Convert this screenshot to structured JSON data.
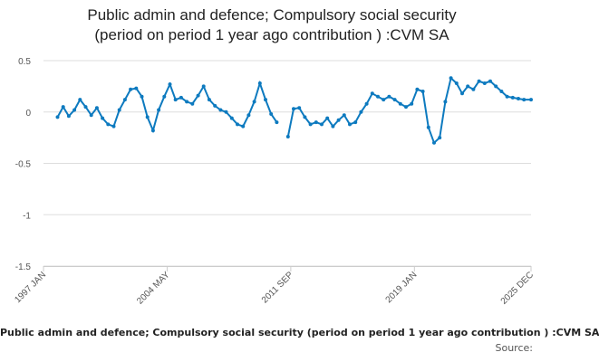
{
  "chart_data": {
    "type": "line",
    "title_line1": "Public admin and defence; Compulsory social security",
    "title_line2": "(period on period 1 year ago contribution ) :CVM SA",
    "series_label": "Public admin and defence; Compulsory social security (period on period 1 year ago contribution ) :CVM SA",
    "source_label": "Source:",
    "ylim": [
      -1.5,
      0.5
    ],
    "yticks": [
      "0.5",
      "0",
      "-0.5",
      "-1",
      "-1.5"
    ],
    "yticks_values": [
      0.5,
      0,
      -0.5,
      -1,
      -1.5
    ],
    "xticks": [
      "1997 JAN",
      "2004 MAY",
      "2011 SEP",
      "2019 JAN",
      "2025 DEC"
    ],
    "xticks_values": [
      1997.0,
      2004.333,
      2011.667,
      2019.0,
      2025.917
    ],
    "grid": "horizontal",
    "legend": "none",
    "line_color": "#0d7abf",
    "x": [
      1997.833,
      1998.167,
      1998.5,
      1998.833,
      1999.167,
      1999.5,
      1999.833,
      2000.167,
      2000.5,
      2000.833,
      2001.167,
      2001.5,
      2001.833,
      2002.167,
      2002.5,
      2002.833,
      2003.167,
      2003.5,
      2003.833,
      2004.167,
      2004.5,
      2004.833,
      2005.167,
      2005.5,
      2005.833,
      2006.167,
      2006.5,
      2006.833,
      2007.167,
      2007.5,
      2007.833,
      2008.167,
      2008.5,
      2008.833,
      2009.167,
      2009.5,
      2009.833,
      2010.167,
      2010.5,
      2010.833,
      2011.5,
      2011.833,
      2012.167,
      2012.5,
      2012.833,
      2013.167,
      2013.5,
      2013.833,
      2014.167,
      2014.5,
      2014.833,
      2015.167,
      2015.5,
      2015.833,
      2016.167,
      2016.5,
      2016.833,
      2017.167,
      2017.5,
      2017.833,
      2018.167,
      2018.5,
      2018.833,
      2019.167,
      2019.5,
      2019.833,
      2020.167,
      2020.5,
      2020.833,
      2021.167,
      2021.5,
      2021.833,
      2022.167,
      2022.5,
      2022.833,
      2023.167,
      2023.5,
      2023.833,
      2024.167,
      2024.5,
      2024.833,
      2025.167,
      2025.5,
      2025.917
    ],
    "values": [
      -0.05,
      0.05,
      -0.04,
      0.02,
      0.12,
      0.05,
      -0.03,
      0.04,
      -0.06,
      -0.12,
      -0.14,
      0.02,
      0.12,
      0.22,
      0.23,
      0.15,
      -0.05,
      -0.18,
      0.02,
      0.15,
      0.27,
      0.12,
      0.14,
      0.1,
      0.08,
      0.16,
      0.25,
      0.12,
      0.06,
      0.02,
      0.0,
      -0.06,
      -0.12,
      -0.14,
      -0.03,
      0.1,
      0.28,
      0.12,
      -0.02,
      -0.1,
      -0.24,
      0.03,
      0.04,
      -0.05,
      -0.12,
      -0.1,
      -0.12,
      -0.06,
      -0.14,
      -0.08,
      -0.03,
      -0.12,
      -0.1,
      0.0,
      0.08,
      0.18,
      0.15,
      0.12,
      0.15,
      0.12,
      0.08,
      0.05,
      0.08,
      0.22,
      0.2,
      -0.15,
      -0.3,
      -0.25,
      0.1,
      0.33,
      0.28,
      0.18,
      0.25,
      0.22,
      0.3,
      0.28,
      0.3,
      0.25,
      0.2,
      0.15,
      0.14,
      0.13,
      0.12,
      0.12
    ]
  }
}
